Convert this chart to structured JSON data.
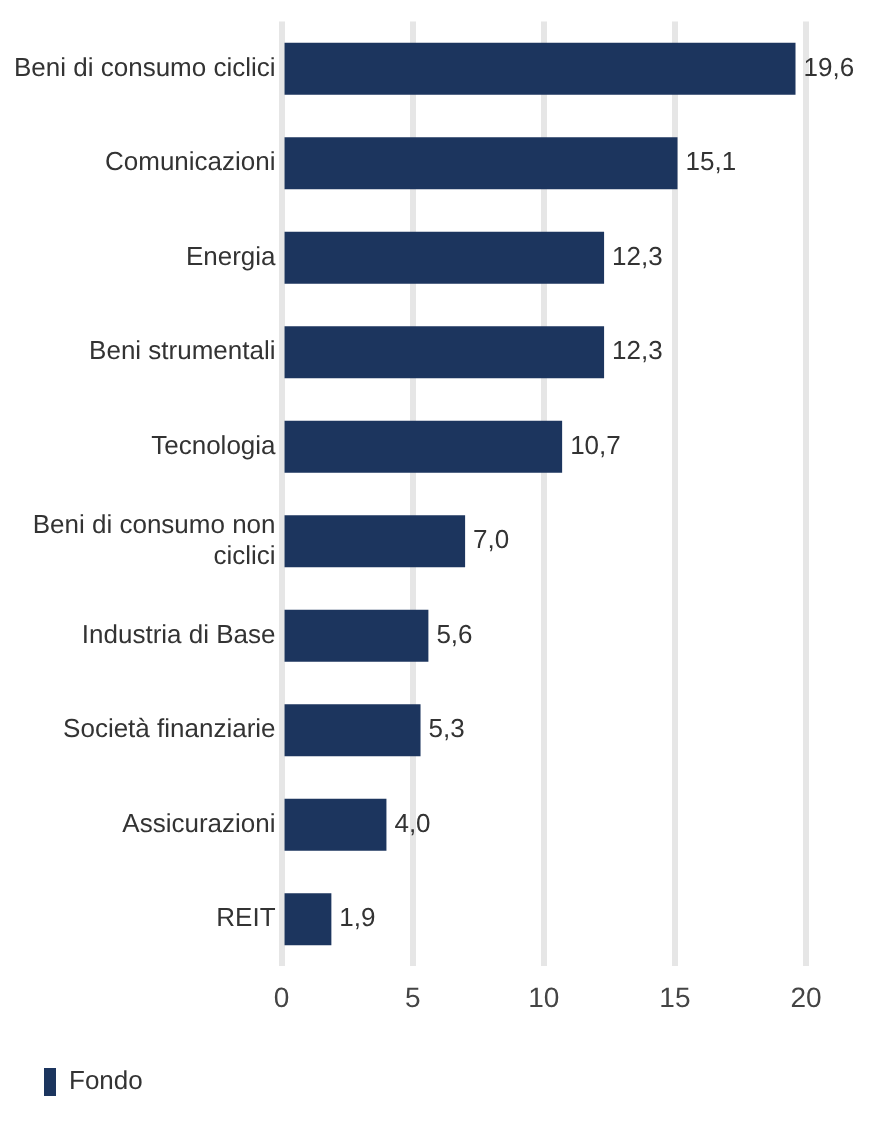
{
  "chart_data": {
    "type": "bar",
    "orientation": "horizontal",
    "categories": [
      "Beni di consumo ciclici",
      "Comunicazioni",
      "Energia",
      "Beni strumentali",
      "Tecnologia",
      "Beni di consumo non ciclici",
      "Industria di Base",
      "Società finanziarie",
      "Assicurazioni",
      "REIT"
    ],
    "series": [
      {
        "name": "Fondo",
        "color": "#1c355e",
        "values": [
          19.6,
          15.1,
          12.3,
          12.3,
          10.7,
          7.0,
          5.6,
          5.3,
          4.0,
          1.9
        ],
        "value_labels": [
          "19,6",
          "15,1",
          "12,3",
          "12,3",
          "10,7",
          "7,0",
          "5,6",
          "5,3",
          "4,0",
          "1,9"
        ]
      }
    ],
    "xlim": [
      0,
      20
    ],
    "xticks": [
      0,
      5,
      10,
      15,
      20
    ],
    "grid": "x",
    "legend": "bottom left"
  }
}
